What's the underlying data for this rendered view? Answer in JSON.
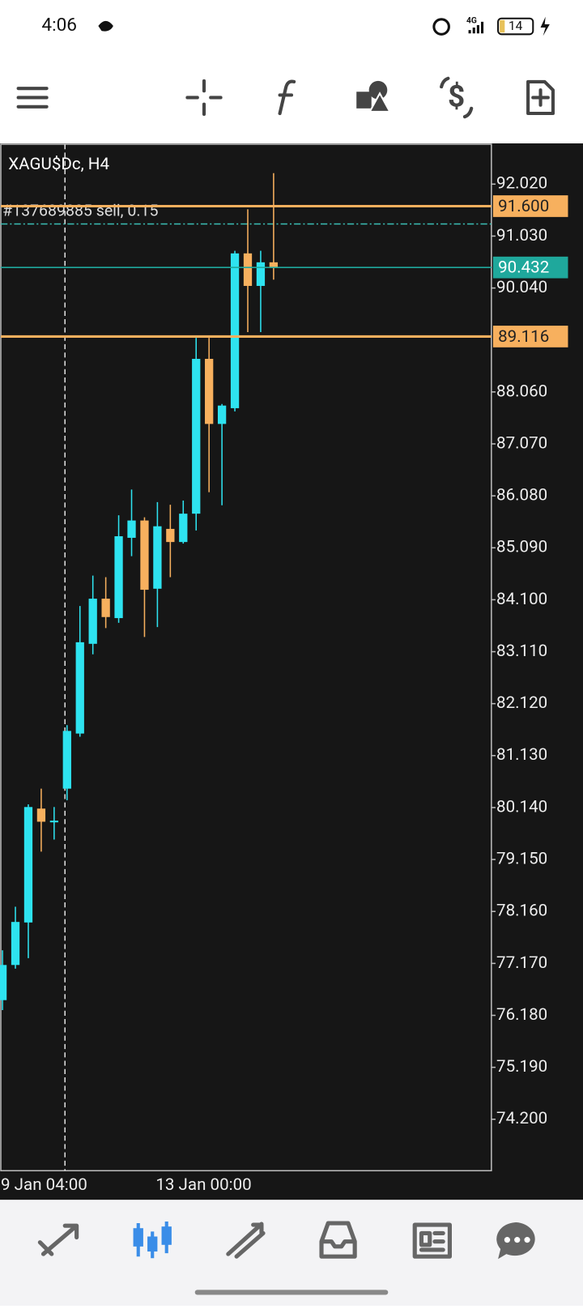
{
  "status_bar": {
    "time": "4:06",
    "network": "4G",
    "battery": "14"
  },
  "chart_data": {
    "type": "candlestick",
    "title": "XAGU$Dc, H4",
    "categories": [
      "9 Jan 04:00",
      null,
      null,
      null,
      null,
      null,
      null,
      null,
      null,
      null,
      null,
      null,
      "13 Jan 00:00",
      null,
      null,
      null,
      null,
      null,
      null,
      null,
      null,
      null
    ],
    "open": [
      76.47,
      77.14,
      77.95,
      80.12,
      79.87,
      80.5,
      81.55,
      83.26,
      84.12,
      83.75,
      85.28,
      85.61,
      84.31,
      85.45,
      85.2,
      85.74,
      88.69,
      87.45,
      87.75,
      90.7,
      90.08,
      90.53
    ],
    "high": [
      77.42,
      78.25,
      80.2,
      80.5,
      80.15,
      81.71,
      83.98,
      84.56,
      84.53,
      85.71,
      86.2,
      85.67,
      85.96,
      85.91,
      85.99,
      89.09,
      89.09,
      87.83,
      90.75,
      91.54,
      90.75,
      92.23
    ],
    "low": [
      76.28,
      77.07,
      77.27,
      79.3,
      79.53,
      80.28,
      81.49,
      83.06,
      83.56,
      83.66,
      84.93,
      83.39,
      83.58,
      84.53,
      85.17,
      85.42,
      86.15,
      85.9,
      87.69,
      89.2,
      89.2,
      90.2
    ],
    "close": [
      77.14,
      77.96,
      80.15,
      79.87,
      79.89,
      81.6,
      83.29,
      84.12,
      83.77,
      85.31,
      85.61,
      84.29,
      85.5,
      85.2,
      85.74,
      88.69,
      87.45,
      87.8,
      90.7,
      90.08,
      90.53,
      90.432
    ],
    "up_color": "#2ee3f0",
    "down_color": "#f7b05e",
    "ylim": [
      73.22,
      92.78
    ],
    "yticks": [
      {
        "value": 92.02,
        "label": "92.020"
      },
      {
        "value": 91.03,
        "label": "91.030"
      },
      {
        "value": 90.04,
        "label": "90.040"
      },
      {
        "value": 88.06,
        "label": "88.060"
      },
      {
        "value": 87.07,
        "label": "87.070"
      },
      {
        "value": 86.08,
        "label": "86.080"
      },
      {
        "value": 85.09,
        "label": "85.090"
      },
      {
        "value": 84.1,
        "label": "84.100"
      },
      {
        "value": 83.11,
        "label": "83.110"
      },
      {
        "value": 82.12,
        "label": "82.120"
      },
      {
        "value": 81.13,
        "label": "81.130"
      },
      {
        "value": 80.14,
        "label": "80.140"
      },
      {
        "value": 79.15,
        "label": "79.150"
      },
      {
        "value": 78.16,
        "label": "78.160"
      },
      {
        "value": 77.17,
        "label": "77.170"
      },
      {
        "value": 76.18,
        "label": "76.180"
      },
      {
        "value": 75.19,
        "label": "75.190"
      },
      {
        "value": 74.2,
        "label": "74.200"
      }
    ],
    "levels": [
      {
        "value": 91.6,
        "label": "91.600",
        "color": "#f7b05e"
      },
      {
        "value": 89.116,
        "label": "89.116",
        "color": "#f7b05e"
      }
    ],
    "current_price": {
      "value": 90.432,
      "label": "90.432",
      "color": "#1fa89c"
    },
    "order": {
      "label": "#137689885 sell, 0.15",
      "value": 91.26,
      "color": "#3bbfb4"
    }
  }
}
